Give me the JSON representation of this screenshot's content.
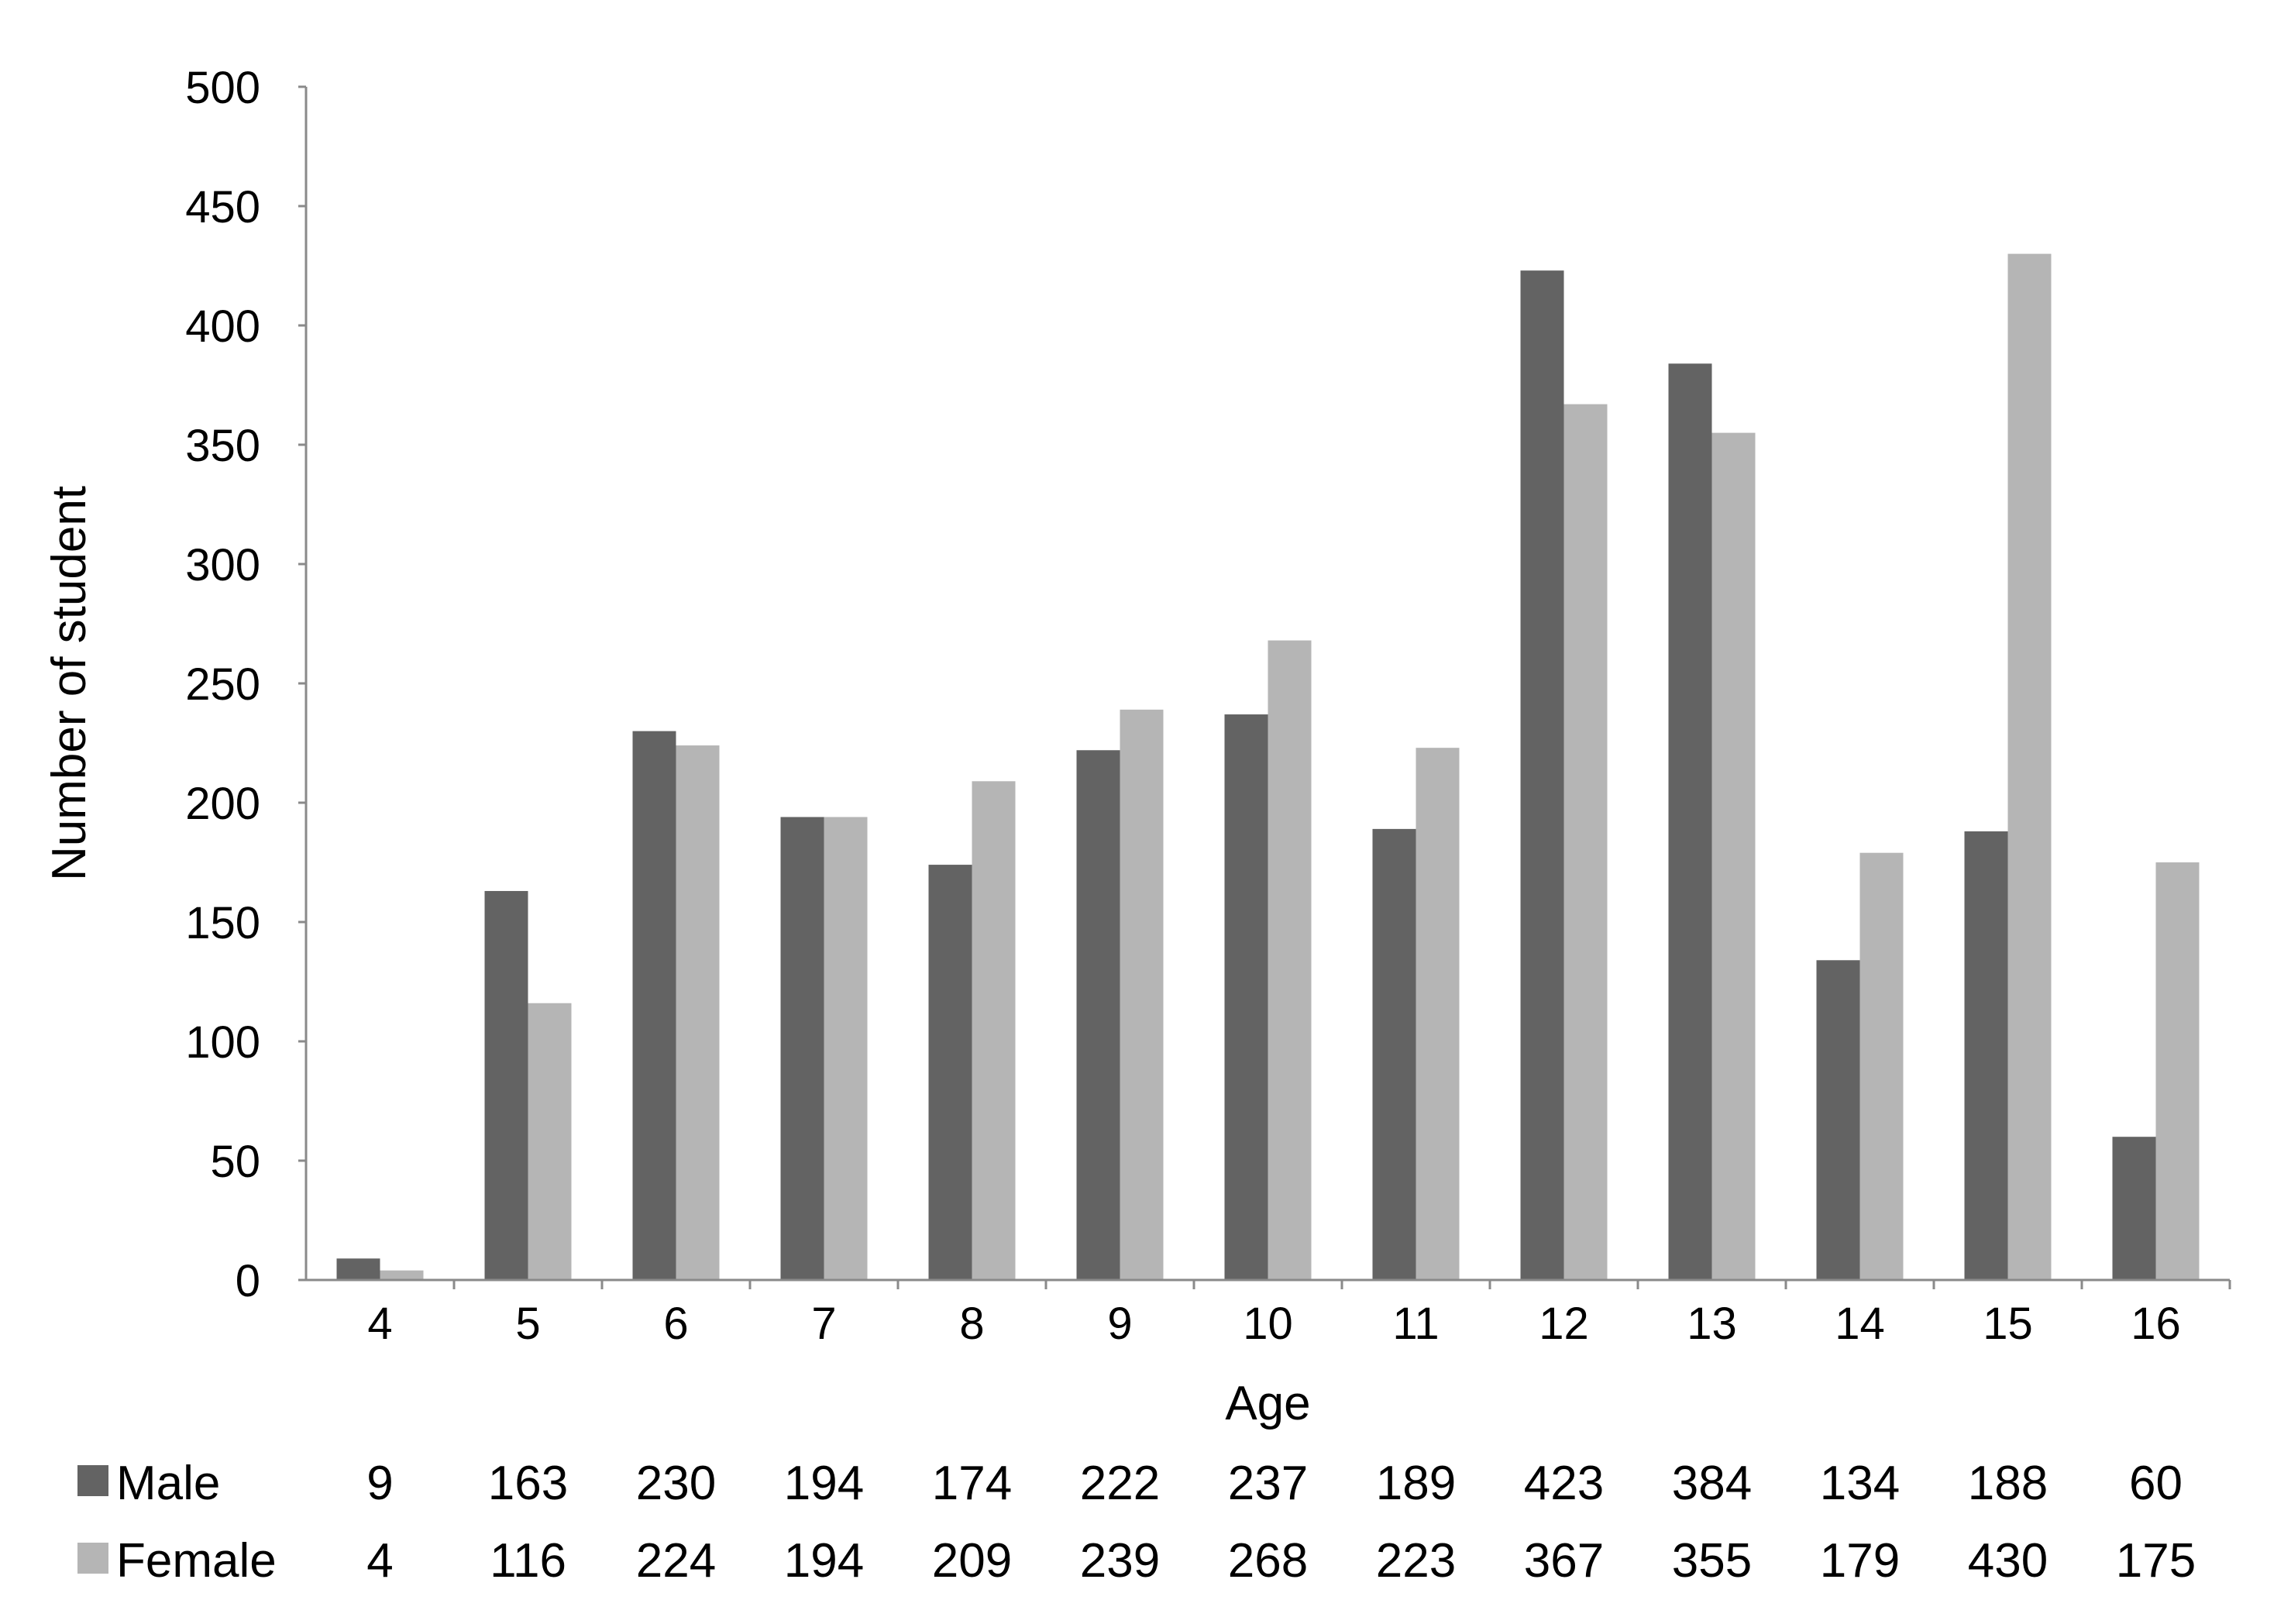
{
  "chart_data": {
    "type": "bar",
    "title": "",
    "xlabel": "Age",
    "ylabel": "Number of student",
    "ylim": [
      0,
      500
    ],
    "yticks": [
      0,
      50,
      100,
      150,
      200,
      250,
      300,
      350,
      400,
      450,
      500
    ],
    "categories": [
      "4",
      "5",
      "6",
      "7",
      "8",
      "9",
      "10",
      "11",
      "12",
      "13",
      "14",
      "15",
      "16"
    ],
    "series": [
      {
        "name": "Male",
        "color": "#636363",
        "values": [
          9,
          163,
          230,
          194,
          174,
          222,
          237,
          189,
          423,
          384,
          134,
          188,
          60
        ]
      },
      {
        "name": "Female",
        "color": "#b5b5b5",
        "values": [
          4,
          116,
          224,
          194,
          209,
          239,
          268,
          223,
          367,
          355,
          179,
          430,
          175
        ]
      }
    ],
    "grid": false,
    "legend": "data-table-below",
    "data_table": true
  }
}
